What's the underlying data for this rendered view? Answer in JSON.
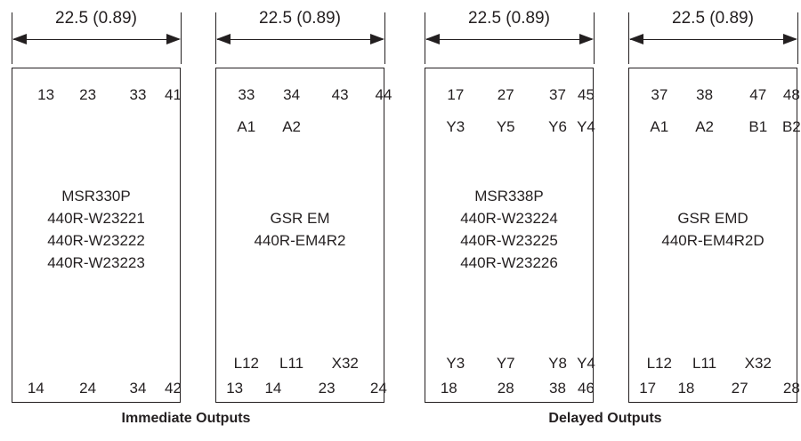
{
  "dimension_label": "22.5 (0.89)",
  "modules": [
    {
      "top_row_1": [
        "13",
        "23",
        "33",
        "41"
      ],
      "top_row_2": [],
      "title_lines": [
        "MSR330P",
        "440R-W23221",
        "440R-W23222",
        "440R-W23223"
      ],
      "bottom_row_1": [],
      "bottom_row_2": [
        "14",
        "24",
        "34",
        "42"
      ]
    },
    {
      "top_row_1": [
        "33",
        "34",
        "43",
        "44"
      ],
      "top_row_2": [
        "A1",
        "A2"
      ],
      "title_lines": [
        "GSR EM",
        "440R-EM4R2"
      ],
      "bottom_row_1": [
        "L12",
        "L11",
        "X32"
      ],
      "bottom_row_2": [
        "13",
        "14",
        "23",
        "24"
      ]
    },
    {
      "top_row_1": [
        "17",
        "27",
        "37",
        "45"
      ],
      "top_row_2": [
        "Y3",
        "Y5",
        "Y6",
        "Y4"
      ],
      "title_lines": [
        "MSR338P",
        "440R-W23224",
        "440R-W23225",
        "440R-W23226"
      ],
      "bottom_row_1": [
        "Y3",
        "Y7",
        "Y8",
        "Y4"
      ],
      "bottom_row_2": [
        "18",
        "28",
        "38",
        "46"
      ]
    },
    {
      "top_row_1": [
        "37",
        "38",
        "47",
        "48"
      ],
      "top_row_2": [
        "A1",
        "A2",
        "B1",
        "B2"
      ],
      "title_lines": [
        "GSR EMD",
        "440R-EM4R2D"
      ],
      "bottom_row_1": [
        "L12",
        "L11",
        "X32"
      ],
      "bottom_row_2": [
        "17",
        "18",
        "27",
        "28"
      ]
    }
  ],
  "captions": {
    "immediate": "Immediate Outputs",
    "delayed": "Delayed Outputs"
  }
}
